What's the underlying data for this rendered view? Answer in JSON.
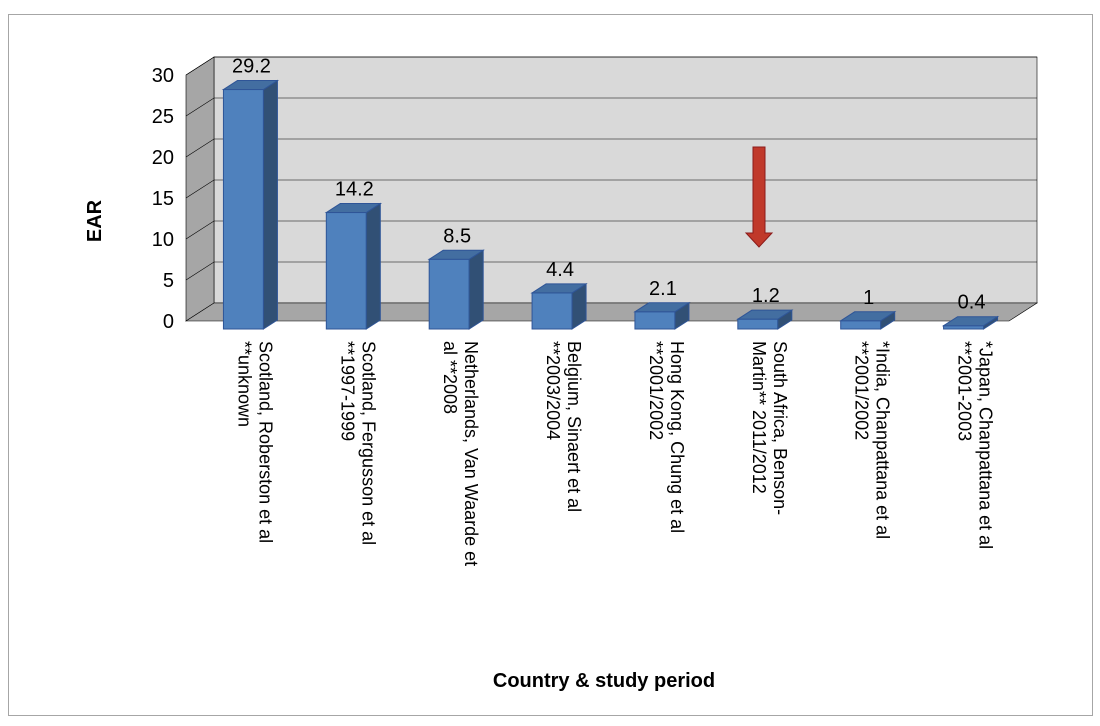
{
  "chart_data": {
    "type": "bar",
    "three_d": true,
    "title": "",
    "xlabel": "Country & study period",
    "ylabel": "EAR",
    "ylim": [
      0,
      30
    ],
    "yticks": [
      0,
      5,
      10,
      15,
      20,
      25,
      30
    ],
    "grid": true,
    "legend": "none",
    "bar_color": "#4f81bd",
    "wall_color": "#d9d9d9",
    "annotation": {
      "type": "arrow",
      "color": "#c0392b",
      "points_to": "South Africa, Benson-Martin** 2011/2012"
    },
    "categories": [
      [
        "Scotland, Roberston et al",
        "**unknown"
      ],
      [
        "Scotland, Fergusson et al",
        "**1997-1999"
      ],
      [
        "Netherlands, Van Waarde et",
        "al **2008"
      ],
      [
        "Belgium, Sinaert et al",
        "**2003/2004"
      ],
      [
        "Hong Kong, Chung et al",
        "**2001/2002"
      ],
      [
        "South Africa, Benson-",
        "Martin** 2011/2012"
      ],
      [
        "*India, Chanpattana et al",
        "**2001/2002"
      ],
      [
        "*Japan, Chanpattana et al",
        "**2001-2003"
      ]
    ],
    "values": [
      29.2,
      14.2,
      8.5,
      4.4,
      2.1,
      1.2,
      1,
      0.4
    ],
    "value_labels": [
      "29.2",
      "14.2",
      "8.5",
      "4.4",
      "2.1",
      "1.2",
      "1",
      "0.4"
    ]
  }
}
